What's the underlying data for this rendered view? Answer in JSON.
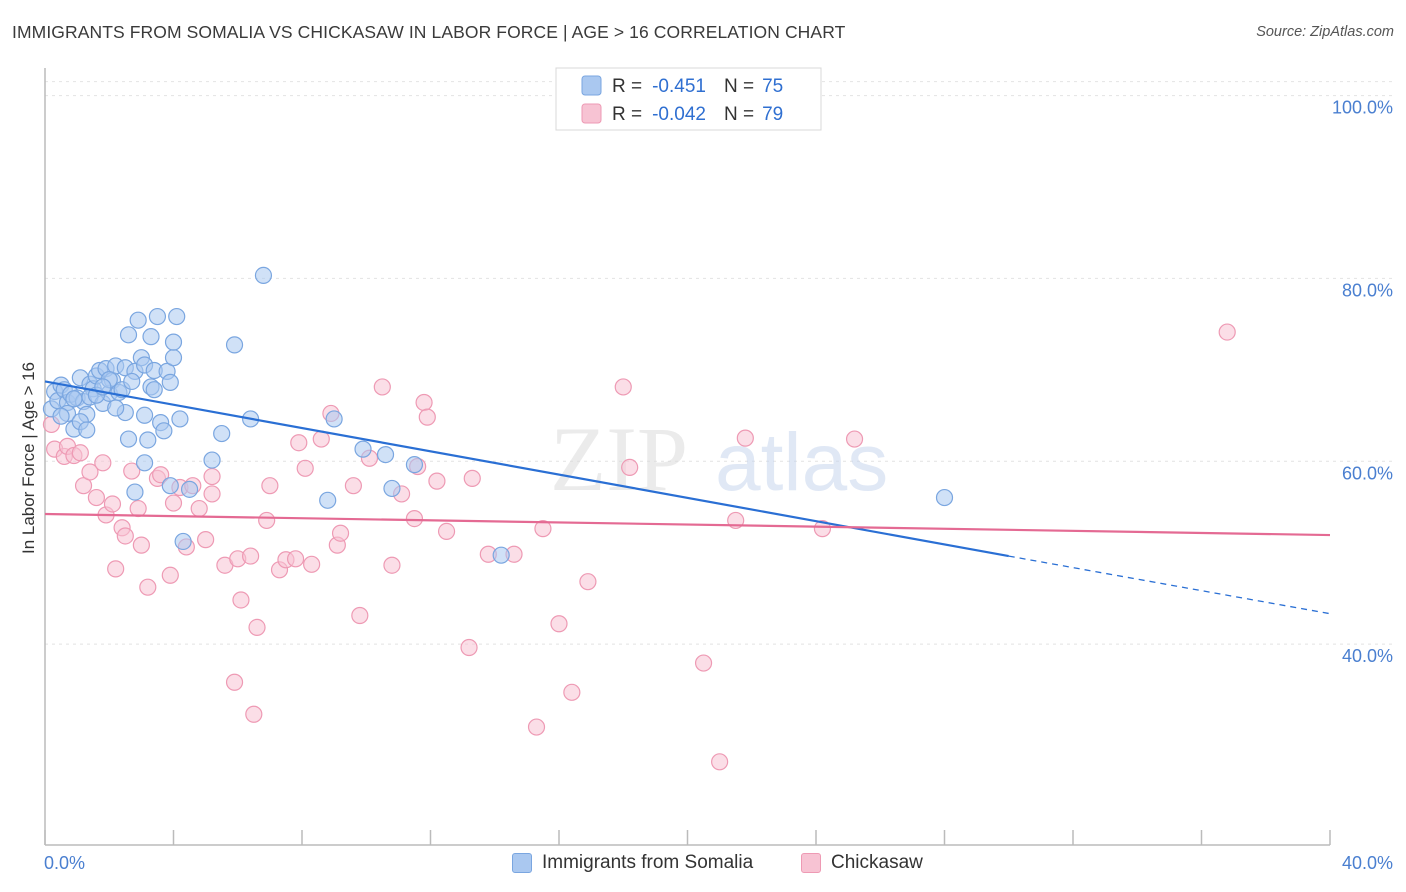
{
  "header": {
    "title": "IMMIGRANTS FROM SOMALIA VS CHICKASAW IN LABOR FORCE | AGE > 16 CORRELATION CHART",
    "source": "Source: ZipAtlas.com"
  },
  "watermark": {
    "zip": "ZIP",
    "atlas": "atlas"
  },
  "colors": {
    "blue_fill": "#aac8f0",
    "blue_stroke": "#7aa6e0",
    "blue_line": "#2a6fd4",
    "pink_fill": "#f7c3d3",
    "pink_stroke": "#ee9ab4",
    "pink_line": "#e46a93",
    "tick_text": "#4a7fd0",
    "grid": "#e2e2e2"
  },
  "legend": {
    "rows": [
      {
        "r_label": "R =",
        "r_value": "-0.451",
        "n_label": "N =",
        "n_value": "75"
      },
      {
        "r_label": "R =",
        "r_value": "-0.042",
        "n_label": "N =",
        "n_value": "79"
      }
    ]
  },
  "bottom_legend": {
    "items": [
      "Immigrants from Somalia",
      "Chickasaw"
    ]
  },
  "chart_data": {
    "type": "scatter",
    "title": "IMMIGRANTS FROM SOMALIA VS CHICKASAW IN LABOR FORCE | AGE > 16 CORRELATION CHART",
    "xlabel": "",
    "ylabel": "In Labor Force | Age > 16",
    "xlim": [
      0,
      40
    ],
    "ylim": [
      20,
      104
    ],
    "x_tick_labels": [
      "0.0%",
      "40.0%"
    ],
    "y_tick_labels": [
      "100.0%",
      "80.0%",
      "60.0%",
      "40.0%"
    ],
    "y_ticks": [
      100,
      80,
      60,
      40
    ],
    "grid": true,
    "legend_position": "top-center",
    "series": [
      {
        "name": "Immigrants from Somalia",
        "color": "#aac8f0",
        "trend": {
          "x": [
            0,
            30
          ],
          "y": [
            70.7,
            51.6
          ],
          "dashed_to": [
            40,
            45.3
          ]
        },
        "points": [
          [
            0.3,
            69.6
          ],
          [
            0.2,
            67.7
          ],
          [
            0.4,
            68.6
          ],
          [
            0.5,
            70.3
          ],
          [
            0.6,
            69.8
          ],
          [
            0.7,
            68.4
          ],
          [
            0.8,
            69.3
          ],
          [
            0.7,
            67.2
          ],
          [
            0.9,
            65.5
          ],
          [
            1.0,
            68.9
          ],
          [
            1.1,
            71.1
          ],
          [
            1.2,
            68.5
          ],
          [
            1.3,
            67.1
          ],
          [
            1.1,
            66.3
          ],
          [
            1.4,
            70.4
          ],
          [
            1.5,
            69.9
          ],
          [
            1.6,
            71.3
          ],
          [
            1.4,
            69.0
          ],
          [
            1.7,
            71.9
          ],
          [
            1.8,
            68.3
          ],
          [
            1.9,
            72.1
          ],
          [
            2.0,
            69.4
          ],
          [
            2.1,
            70.8
          ],
          [
            2.2,
            72.4
          ],
          [
            2.0,
            70.9
          ],
          [
            2.3,
            69.5
          ],
          [
            2.4,
            69.8
          ],
          [
            2.5,
            67.3
          ],
          [
            2.6,
            64.4
          ],
          [
            2.5,
            72.2
          ],
          [
            2.6,
            75.8
          ],
          [
            2.8,
            58.6
          ],
          [
            2.8,
            71.8
          ],
          [
            2.9,
            77.4
          ],
          [
            3.0,
            73.3
          ],
          [
            3.1,
            72.5
          ],
          [
            3.1,
            67.0
          ],
          [
            3.2,
            64.3
          ],
          [
            3.3,
            70.1
          ],
          [
            3.3,
            75.6
          ],
          [
            3.4,
            69.8
          ],
          [
            3.4,
            71.9
          ],
          [
            3.5,
            77.8
          ],
          [
            3.6,
            66.2
          ],
          [
            3.7,
            65.3
          ],
          [
            3.8,
            71.8
          ],
          [
            3.9,
            70.6
          ],
          [
            4.0,
            73.3
          ],
          [
            4.0,
            75.0
          ],
          [
            4.1,
            77.8
          ],
          [
            4.2,
            66.6
          ],
          [
            4.3,
            53.2
          ],
          [
            4.5,
            58.9
          ],
          [
            5.2,
            62.1
          ],
          [
            5.5,
            65.0
          ],
          [
            5.9,
            74.7
          ],
          [
            6.4,
            66.6
          ],
          [
            6.8,
            82.3
          ],
          [
            8.8,
            57.7
          ],
          [
            9.0,
            66.6
          ],
          [
            9.9,
            63.3
          ],
          [
            10.6,
            62.7
          ],
          [
            10.8,
            59.0
          ],
          [
            11.5,
            61.6
          ],
          [
            14.2,
            51.7
          ],
          [
            28.0,
            58.0
          ],
          [
            3.1,
            61.8
          ],
          [
            3.9,
            59.3
          ],
          [
            1.6,
            69.2
          ],
          [
            2.2,
            67.8
          ],
          [
            0.9,
            68.8
          ],
          [
            1.8,
            70.1
          ],
          [
            2.7,
            70.7
          ],
          [
            0.5,
            66.9
          ],
          [
            1.3,
            65.4
          ]
        ]
      },
      {
        "name": "Chickasaw",
        "color": "#f7c3d3",
        "trend": {
          "x": [
            0,
            40
          ],
          "y": [
            56.2,
            53.9
          ]
        },
        "points": [
          [
            0.2,
            66.0
          ],
          [
            0.3,
            63.3
          ],
          [
            0.6,
            62.5
          ],
          [
            0.7,
            63.6
          ],
          [
            0.9,
            62.6
          ],
          [
            1.1,
            62.9
          ],
          [
            1.2,
            59.3
          ],
          [
            1.4,
            60.8
          ],
          [
            1.6,
            58.0
          ],
          [
            1.8,
            61.8
          ],
          [
            1.9,
            56.1
          ],
          [
            2.1,
            57.3
          ],
          [
            2.2,
            50.2
          ],
          [
            2.4,
            54.7
          ],
          [
            2.5,
            53.8
          ],
          [
            2.7,
            60.9
          ],
          [
            2.9,
            56.8
          ],
          [
            3.0,
            52.8
          ],
          [
            3.2,
            48.2
          ],
          [
            3.5,
            60.1
          ],
          [
            3.6,
            60.5
          ],
          [
            3.9,
            49.5
          ],
          [
            4.0,
            57.4
          ],
          [
            4.2,
            59.1
          ],
          [
            4.4,
            52.6
          ],
          [
            4.6,
            59.3
          ],
          [
            4.8,
            56.8
          ],
          [
            5.0,
            53.4
          ],
          [
            5.2,
            58.4
          ],
          [
            5.2,
            60.3
          ],
          [
            5.6,
            50.6
          ],
          [
            6.0,
            51.3
          ],
          [
            6.1,
            46.8
          ],
          [
            5.9,
            37.8
          ],
          [
            6.4,
            51.6
          ],
          [
            6.6,
            43.8
          ],
          [
            6.9,
            55.5
          ],
          [
            7.0,
            59.3
          ],
          [
            7.3,
            50.1
          ],
          [
            7.5,
            51.2
          ],
          [
            7.8,
            51.3
          ],
          [
            7.9,
            64.0
          ],
          [
            8.1,
            61.2
          ],
          [
            8.3,
            50.7
          ],
          [
            8.6,
            64.4
          ],
          [
            8.9,
            67.2
          ],
          [
            9.1,
            52.8
          ],
          [
            9.2,
            54.1
          ],
          [
            9.6,
            59.3
          ],
          [
            9.8,
            45.1
          ],
          [
            10.1,
            62.3
          ],
          [
            10.5,
            70.1
          ],
          [
            10.8,
            50.6
          ],
          [
            11.1,
            58.4
          ],
          [
            11.5,
            55.7
          ],
          [
            11.6,
            61.4
          ],
          [
            11.8,
            68.4
          ],
          [
            11.9,
            66.8
          ],
          [
            12.2,
            59.8
          ],
          [
            12.5,
            54.3
          ],
          [
            13.3,
            60.1
          ],
          [
            13.2,
            41.6
          ],
          [
            13.8,
            51.8
          ],
          [
            14.6,
            51.8
          ],
          [
            15.3,
            32.9
          ],
          [
            15.5,
            54.6
          ],
          [
            16.0,
            44.2
          ],
          [
            16.4,
            36.7
          ],
          [
            16.9,
            48.8
          ],
          [
            18.0,
            70.1
          ],
          [
            18.2,
            61.3
          ],
          [
            20.5,
            39.9
          ],
          [
            21.0,
            29.1
          ],
          [
            21.5,
            55.5
          ],
          [
            21.8,
            64.5
          ],
          [
            24.2,
            54.6
          ],
          [
            25.2,
            64.4
          ],
          [
            36.8,
            76.1
          ],
          [
            6.5,
            34.3
          ]
        ]
      }
    ]
  }
}
